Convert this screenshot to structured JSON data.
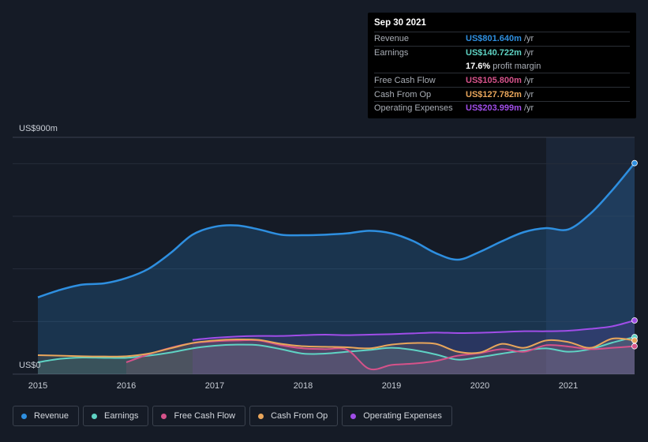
{
  "tooltip": {
    "date": "Sep 30 2021",
    "rows": [
      {
        "label": "Revenue",
        "value": "US$801.640m",
        "unit": "/yr",
        "color": "#2e8fe0"
      },
      {
        "label": "Earnings",
        "value": "US$140.722m",
        "unit": "/yr",
        "color": "#5fd3c4"
      },
      {
        "label": "",
        "value": "17.6%",
        "unit": "profit margin",
        "color": "#ffffff"
      },
      {
        "label": "Free Cash Flow",
        "value": "US$105.800m",
        "unit": "/yr",
        "color": "#d5528a"
      },
      {
        "label": "Cash From Op",
        "value": "US$127.782m",
        "unit": "/yr",
        "color": "#e9a65b"
      },
      {
        "label": "Operating Expenses",
        "value": "US$203.999m",
        "unit": "/yr",
        "color": "#a04de8"
      }
    ]
  },
  "chart_data": {
    "type": "line",
    "ylabel_top": "US$900m",
    "ylabel_bottom": "US$0",
    "ylim": [
      0,
      900
    ],
    "xlim": [
      2015.0,
      2021.75
    ],
    "x_ticks": [
      "2015",
      "2016",
      "2017",
      "2018",
      "2019",
      "2020",
      "2021"
    ],
    "highlight_from": 2020.75,
    "series": [
      {
        "name": "Revenue",
        "color": "#2e8fe0",
        "x": [
          2015.0,
          2015.25,
          2015.5,
          2015.75,
          2016.0,
          2016.25,
          2016.5,
          2016.75,
          2017.0,
          2017.25,
          2017.5,
          2017.75,
          2018.0,
          2018.25,
          2018.5,
          2018.75,
          2019.0,
          2019.25,
          2019.5,
          2019.75,
          2020.0,
          2020.25,
          2020.5,
          2020.75,
          2021.0,
          2021.25,
          2021.5,
          2021.75
        ],
        "values": [
          292,
          320,
          340,
          345,
          365,
          400,
          460,
          530,
          560,
          565,
          550,
          530,
          528,
          530,
          535,
          545,
          535,
          505,
          460,
          435,
          465,
          505,
          540,
          555,
          550,
          610,
          700,
          802
        ]
      },
      {
        "name": "Earnings",
        "color": "#5fd3c4",
        "x": [
          2015.0,
          2015.25,
          2015.5,
          2015.75,
          2016.0,
          2016.25,
          2016.5,
          2016.75,
          2017.0,
          2017.25,
          2017.5,
          2017.75,
          2018.0,
          2018.25,
          2018.5,
          2018.75,
          2019.0,
          2019.25,
          2019.5,
          2019.75,
          2020.0,
          2020.25,
          2020.5,
          2020.75,
          2021.0,
          2021.25,
          2021.5,
          2021.75
        ],
        "values": [
          45,
          58,
          63,
          62,
          62,
          70,
          82,
          98,
          108,
          112,
          110,
          95,
          78,
          78,
          85,
          92,
          100,
          92,
          75,
          55,
          65,
          78,
          90,
          98,
          85,
          95,
          120,
          141
        ]
      },
      {
        "name": "Free Cash Flow",
        "color": "#d5528a",
        "x": [
          2016.0,
          2016.25,
          2016.5,
          2016.75,
          2017.0,
          2017.25,
          2017.5,
          2017.75,
          2018.0,
          2018.25,
          2018.5,
          2018.75,
          2019.0,
          2019.25,
          2019.5,
          2019.75,
          2020.0,
          2020.25,
          2020.5,
          2020.75,
          2021.0,
          2021.25,
          2021.5,
          2021.75
        ],
        "values": [
          45,
          75,
          100,
          118,
          125,
          128,
          128,
          110,
          98,
          95,
          92,
          20,
          35,
          40,
          50,
          70,
          80,
          95,
          85,
          110,
          105,
          95,
          100,
          106
        ]
      },
      {
        "name": "Cash From Op",
        "color": "#e9a65b",
        "x": [
          2015.0,
          2015.25,
          2015.5,
          2015.75,
          2016.0,
          2016.25,
          2016.5,
          2016.75,
          2017.0,
          2017.25,
          2017.5,
          2017.75,
          2018.0,
          2018.25,
          2018.5,
          2018.75,
          2019.0,
          2019.25,
          2019.5,
          2019.75,
          2020.0,
          2020.25,
          2020.5,
          2020.75,
          2021.0,
          2021.25,
          2021.5,
          2021.75
        ],
        "values": [
          72,
          70,
          68,
          67,
          68,
          78,
          98,
          118,
          128,
          132,
          130,
          115,
          106,
          104,
          102,
          98,
          112,
          118,
          115,
          85,
          82,
          115,
          100,
          128,
          122,
          100,
          135,
          128
        ]
      },
      {
        "name": "Operating Expenses",
        "color": "#a04de8",
        "x": [
          2016.75,
          2017.0,
          2017.25,
          2017.5,
          2017.75,
          2018.0,
          2018.25,
          2018.5,
          2018.75,
          2019.0,
          2019.25,
          2019.5,
          2019.75,
          2020.0,
          2020.25,
          2020.5,
          2020.75,
          2021.0,
          2021.25,
          2021.5,
          2021.75
        ],
        "values": [
          130,
          138,
          143,
          145,
          145,
          148,
          150,
          148,
          150,
          152,
          155,
          158,
          156,
          157,
          160,
          163,
          163,
          165,
          172,
          182,
          204
        ]
      }
    ]
  },
  "legend": [
    {
      "label": "Revenue",
      "color": "#2e8fe0"
    },
    {
      "label": "Earnings",
      "color": "#5fd3c4"
    },
    {
      "label": "Free Cash Flow",
      "color": "#d5528a"
    },
    {
      "label": "Cash From Op",
      "color": "#e9a65b"
    },
    {
      "label": "Operating Expenses",
      "color": "#a04de8"
    }
  ]
}
